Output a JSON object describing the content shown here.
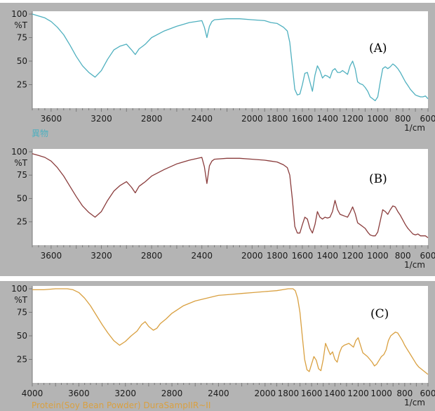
{
  "colors": {
    "frame": "#b4b4b4",
    "plot_bg": "#ffffff",
    "axis": "#7a7a7a"
  },
  "chart_data": [
    {
      "type": "line",
      "title": "(A)",
      "y_axis_label": "%T",
      "x_unit_label": "1/cm",
      "sample_label": "異物",
      "color": "#4fb0bf",
      "xlim": [
        3750,
        600
      ],
      "ylim": [
        0,
        103
      ],
      "xticks": [
        "3600",
        "3200",
        "2800",
        "2400",
        "2000",
        "1800",
        "1600",
        "1400",
        "1200",
        "1000",
        "800",
        "600"
      ],
      "yticks": [
        "100",
        "75",
        "50",
        "25"
      ],
      "grid": false,
      "x": [
        3750,
        3700,
        3650,
        3600,
        3550,
        3500,
        3450,
        3400,
        3350,
        3300,
        3250,
        3200,
        3150,
        3100,
        3050,
        3000,
        2960,
        2930,
        2900,
        2870,
        2850,
        2800,
        2700,
        2600,
        2500,
        2400,
        2380,
        2360,
        2340,
        2320,
        2300,
        2200,
        2100,
        2000,
        1900,
        1850,
        1800,
        1750,
        1720,
        1700,
        1680,
        1660,
        1640,
        1620,
        1600,
        1580,
        1560,
        1540,
        1520,
        1500,
        1480,
        1460,
        1440,
        1420,
        1400,
        1380,
        1360,
        1340,
        1320,
        1300,
        1280,
        1260,
        1240,
        1220,
        1200,
        1180,
        1160,
        1140,
        1120,
        1100,
        1080,
        1060,
        1040,
        1020,
        1000,
        980,
        960,
        940,
        920,
        900,
        880,
        860,
        840,
        820,
        800,
        780,
        760,
        740,
        720,
        700,
        680,
        660,
        640,
        620,
        600
      ],
      "y": [
        100,
        98,
        96,
        92,
        86,
        78,
        67,
        55,
        45,
        38,
        33,
        40,
        52,
        62,
        66,
        68,
        62,
        57,
        63,
        66,
        68,
        75,
        82,
        87,
        91,
        93,
        86,
        75,
        87,
        92,
        94,
        95,
        95,
        94,
        93,
        91,
        90,
        86,
        82,
        70,
        45,
        20,
        14,
        15,
        25,
        37,
        38,
        28,
        18,
        35,
        45,
        40,
        32,
        35,
        34,
        32,
        40,
        42,
        38,
        38,
        40,
        38,
        36,
        45,
        50,
        42,
        28,
        26,
        25,
        22,
        18,
        12,
        10,
        8,
        12,
        28,
        42,
        44,
        42,
        44,
        47,
        45,
        42,
        38,
        33,
        28,
        24,
        20,
        17,
        14,
        13,
        12,
        12,
        13,
        10
      ]
    },
    {
      "type": "line",
      "title": "(B)",
      "y_axis_label": "%T",
      "x_unit_label": "1/cm",
      "color": "#8a3c3c",
      "xlim": [
        3750,
        600
      ],
      "ylim": [
        0,
        103
      ],
      "xticks": [
        "3600",
        "3200",
        "2800",
        "2400",
        "2000",
        "1800",
        "1600",
        "1400",
        "1200",
        "1000",
        "800",
        "600"
      ],
      "yticks": [
        "100",
        "75",
        "50",
        "25"
      ],
      "grid": false,
      "x": [
        3750,
        3700,
        3650,
        3600,
        3550,
        3500,
        3450,
        3400,
        3350,
        3300,
        3250,
        3200,
        3150,
        3100,
        3050,
        3000,
        2960,
        2930,
        2900,
        2870,
        2850,
        2800,
        2700,
        2600,
        2500,
        2400,
        2380,
        2360,
        2340,
        2320,
        2300,
        2200,
        2100,
        2000,
        1900,
        1850,
        1800,
        1750,
        1720,
        1700,
        1680,
        1660,
        1640,
        1620,
        1600,
        1580,
        1560,
        1540,
        1520,
        1500,
        1480,
        1460,
        1440,
        1420,
        1400,
        1380,
        1360,
        1340,
        1320,
        1300,
        1280,
        1260,
        1240,
        1220,
        1200,
        1180,
        1160,
        1140,
        1120,
        1100,
        1080,
        1060,
        1040,
        1020,
        1000,
        980,
        960,
        940,
        920,
        900,
        880,
        860,
        840,
        820,
        800,
        780,
        760,
        740,
        720,
        700,
        680,
        660,
        640,
        620,
        600
      ],
      "y": [
        98,
        96,
        94,
        90,
        83,
        74,
        63,
        52,
        42,
        35,
        30,
        36,
        48,
        58,
        64,
        68,
        62,
        56,
        63,
        66,
        68,
        74,
        81,
        87,
        91,
        94,
        84,
        66,
        85,
        90,
        92,
        93,
        93,
        92,
        91,
        90,
        89,
        86,
        83,
        75,
        50,
        20,
        13,
        13,
        22,
        30,
        28,
        18,
        13,
        22,
        36,
        30,
        28,
        30,
        29,
        30,
        36,
        48,
        38,
        33,
        32,
        31,
        30,
        35,
        41,
        34,
        24,
        22,
        20,
        18,
        14,
        11,
        10,
        10,
        14,
        26,
        38,
        36,
        33,
        38,
        42,
        41,
        36,
        32,
        27,
        22,
        18,
        15,
        12,
        11,
        12,
        10,
        10,
        10,
        8
      ]
    },
    {
      "type": "line",
      "title": "(C)",
      "y_axis_label": "%T",
      "x_unit_label": "1/cm",
      "sample_label": "Protein(Soy Bean Powder) DuraSampIIR~II",
      "color": "#d9a040",
      "xlim": [
        4000,
        600
      ],
      "ylim": [
        0,
        103
      ],
      "xticks": [
        "4000",
        "3600",
        "3200",
        "2800",
        "2400",
        "2000",
        "1800",
        "1600",
        "1400",
        "1200",
        "1000",
        "800",
        "600"
      ],
      "yticks": [
        "100",
        "75",
        "50",
        "25"
      ],
      "grid": false,
      "x": [
        4000,
        3900,
        3800,
        3700,
        3650,
        3600,
        3550,
        3500,
        3450,
        3400,
        3350,
        3300,
        3250,
        3200,
        3150,
        3100,
        3060,
        3030,
        3000,
        2960,
        2930,
        2900,
        2870,
        2850,
        2800,
        2700,
        2600,
        2500,
        2400,
        2300,
        2200,
        2100,
        2000,
        1900,
        1850,
        1800,
        1760,
        1740,
        1720,
        1700,
        1680,
        1660,
        1640,
        1620,
        1600,
        1580,
        1560,
        1540,
        1520,
        1500,
        1480,
        1460,
        1440,
        1420,
        1400,
        1380,
        1360,
        1340,
        1320,
        1300,
        1280,
        1260,
        1240,
        1220,
        1200,
        1180,
        1160,
        1140,
        1120,
        1100,
        1080,
        1060,
        1040,
        1020,
        1000,
        980,
        960,
        940,
        920,
        900,
        880,
        860,
        840,
        820,
        800,
        780,
        760,
        740,
        720,
        700,
        680,
        660,
        640,
        620,
        600
      ],
      "y": [
        99,
        99,
        100,
        100,
        99,
        96,
        90,
        82,
        72,
        62,
        53,
        45,
        40,
        44,
        50,
        55,
        62,
        65,
        60,
        56,
        58,
        63,
        66,
        68,
        74,
        82,
        87,
        90,
        93,
        94,
        95,
        96,
        97,
        98,
        99,
        100,
        100,
        98,
        90,
        75,
        50,
        25,
        14,
        12,
        20,
        28,
        24,
        15,
        13,
        25,
        42,
        36,
        30,
        33,
        25,
        22,
        32,
        38,
        40,
        41,
        42,
        40,
        38,
        45,
        48,
        40,
        32,
        30,
        28,
        25,
        22,
        18,
        20,
        24,
        28,
        30,
        35,
        45,
        50,
        52,
        54,
        53,
        49,
        45,
        40,
        36,
        32,
        28,
        24,
        20,
        17,
        15,
        13,
        11,
        9
      ]
    }
  ]
}
